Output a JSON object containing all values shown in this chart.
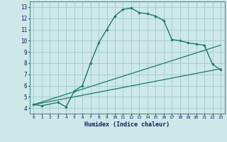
{
  "xlabel": "Humidex (Indice chaleur)",
  "bg_color": "#cce8e8",
  "grid_color": "#aacccc",
  "line_color": "#1a7a6a",
  "xlim": [
    -0.5,
    23.5
  ],
  "ylim": [
    3.5,
    13.5
  ],
  "xticks": [
    0,
    1,
    2,
    3,
    4,
    5,
    6,
    7,
    8,
    9,
    10,
    11,
    12,
    13,
    14,
    15,
    16,
    17,
    18,
    19,
    20,
    21,
    22,
    23
  ],
  "yticks": [
    4,
    5,
    6,
    7,
    8,
    9,
    10,
    11,
    12,
    13
  ],
  "curve1_x": [
    0,
    1,
    3,
    4,
    5,
    6,
    7,
    8,
    9,
    10,
    11,
    12,
    13,
    14,
    15,
    16,
    17,
    18,
    19,
    20,
    21,
    22,
    23
  ],
  "curve1_y": [
    4.3,
    4.2,
    4.5,
    4.1,
    5.5,
    6.0,
    8.0,
    9.8,
    11.0,
    12.2,
    12.8,
    12.9,
    12.5,
    12.4,
    12.2,
    11.8,
    10.1,
    10.0,
    9.8,
    9.7,
    9.6,
    7.9,
    7.4
  ],
  "curve2_x": [
    0,
    23
  ],
  "curve2_y": [
    4.3,
    7.5
  ],
  "curve3_x": [
    0,
    23
  ],
  "curve3_y": [
    4.3,
    9.6
  ]
}
